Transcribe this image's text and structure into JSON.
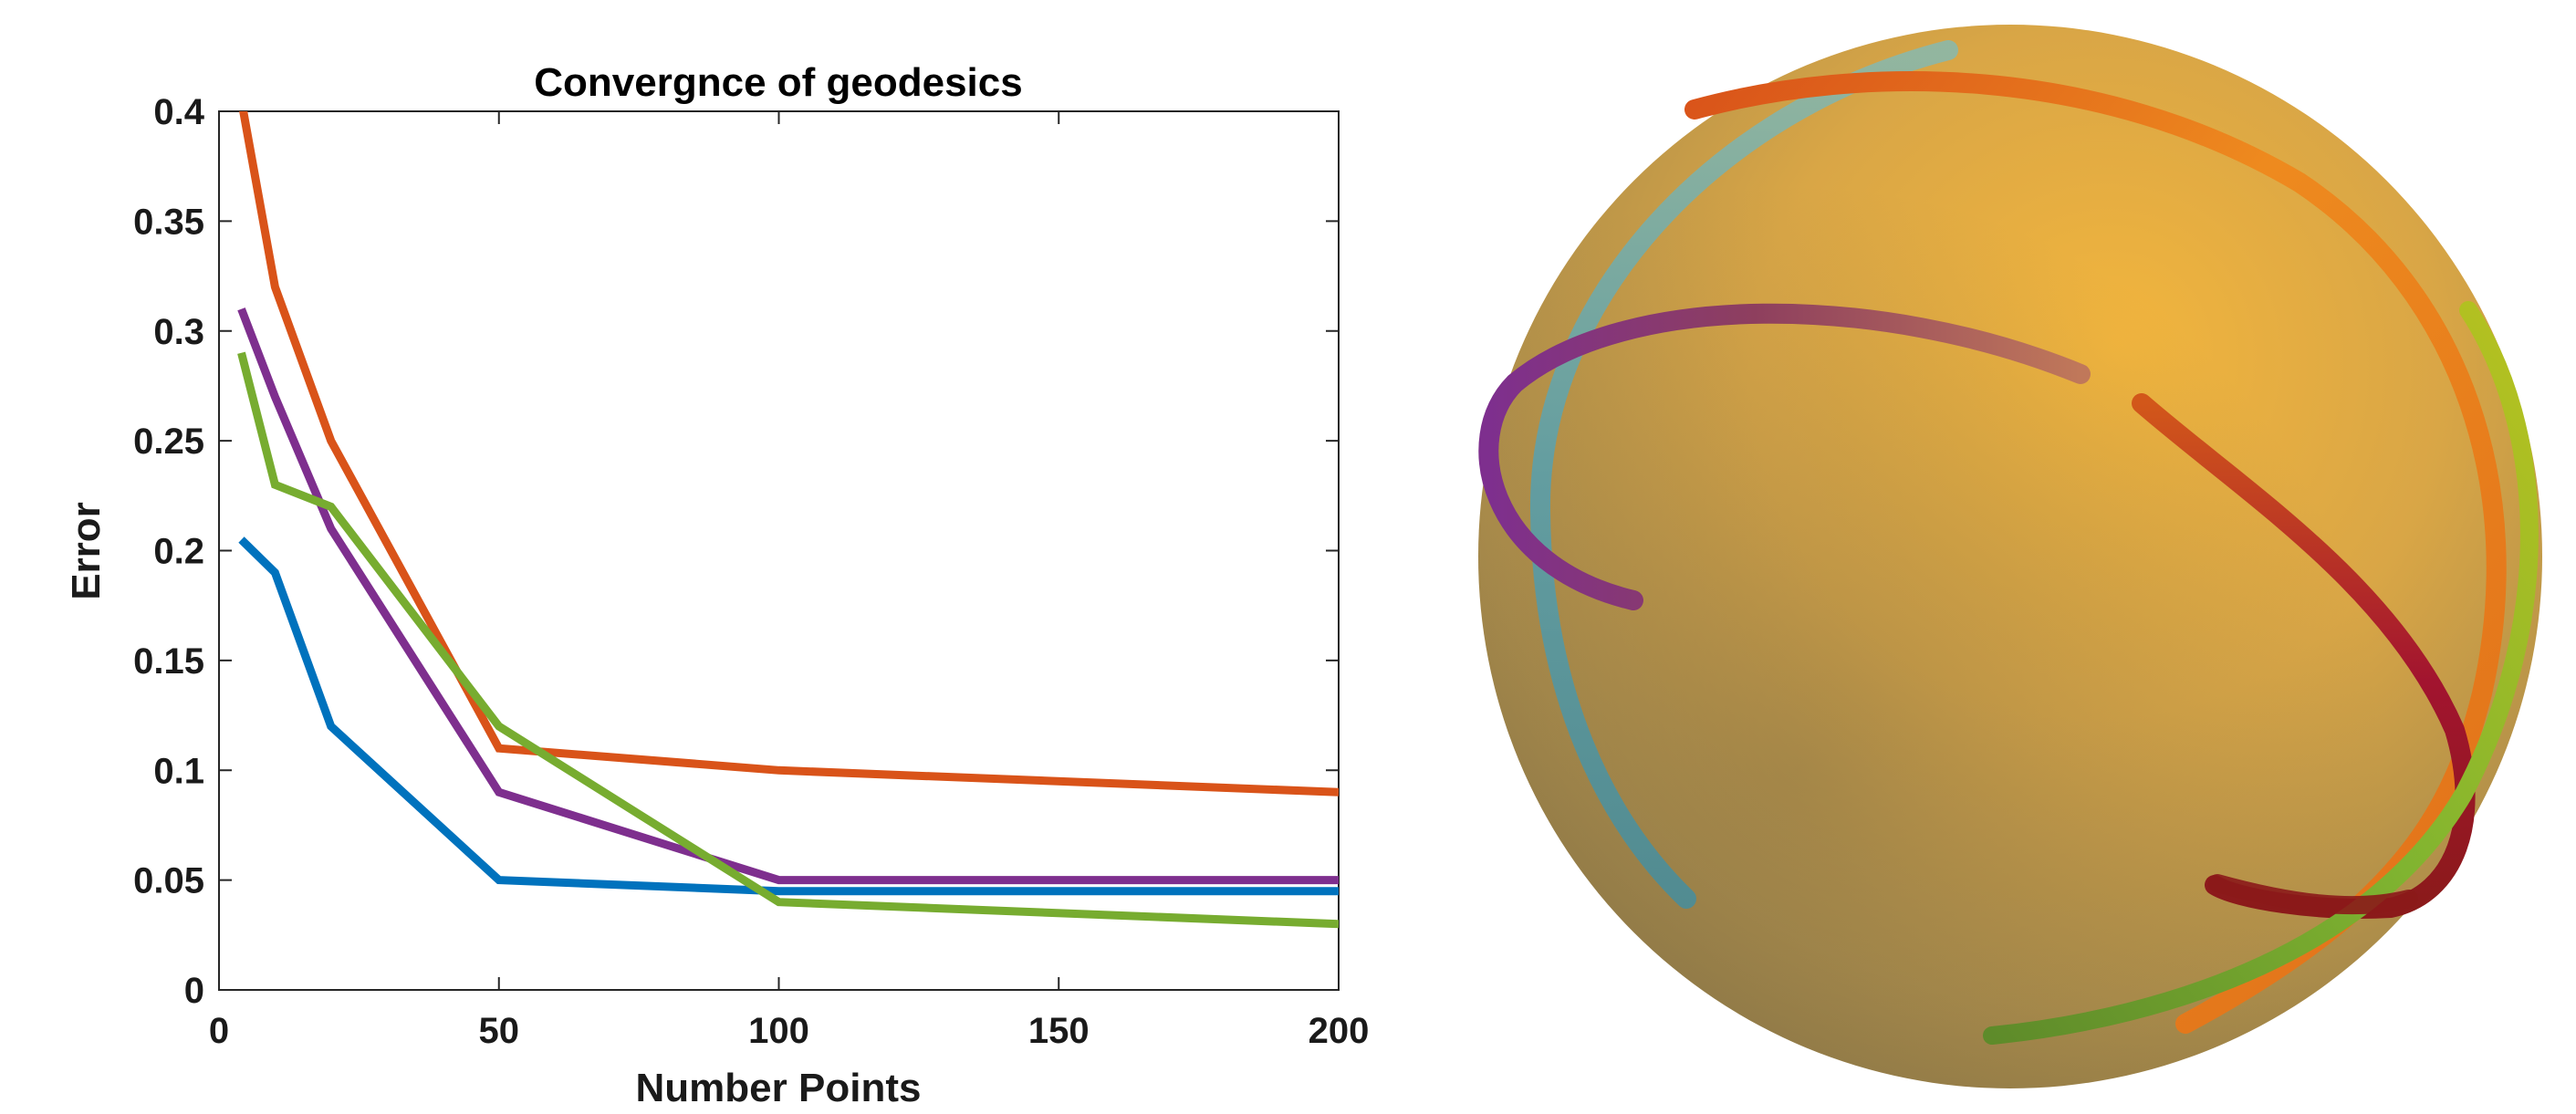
{
  "chart_data": {
    "type": "line",
    "title": "Convergnce of geodesics",
    "xlabel": "Number Points",
    "ylabel": "Error",
    "xlim": [
      0,
      200
    ],
    "ylim": [
      0,
      0.4
    ],
    "xticks": [
      0,
      50,
      100,
      150,
      200
    ],
    "xtick_labels": [
      "0",
      "50",
      "100",
      "150",
      "200"
    ],
    "yticks": [
      0,
      0.05,
      0.1,
      0.15,
      0.2,
      0.25,
      0.3,
      0.35,
      0.4
    ],
    "ytick_labels": [
      "0",
      "0.05",
      "0.1",
      "0.15",
      "0.2",
      "0.25",
      "0.3",
      "0.35",
      "0.4"
    ],
    "grid": false,
    "legend": "none",
    "series": [
      {
        "color": "#0072BD",
        "x": [
          4,
          10,
          20,
          50,
          100,
          200
        ],
        "y": [
          0.205,
          0.19,
          0.12,
          0.05,
          0.045,
          0.045
        ]
      },
      {
        "color": "#D95319",
        "x": [
          4,
          10,
          20,
          50,
          100,
          200
        ],
        "y": [
          0.405,
          0.32,
          0.25,
          0.11,
          0.1,
          0.09
        ]
      },
      {
        "color": "#7E2F8E",
        "x": [
          4,
          10,
          20,
          50,
          100,
          200
        ],
        "y": [
          0.31,
          0.27,
          0.21,
          0.09,
          0.05,
          0.05
        ]
      },
      {
        "color": "#77AC30",
        "x": [
          4,
          10,
          20,
          50,
          100,
          200
        ],
        "y": [
          0.29,
          0.23,
          0.22,
          0.12,
          0.04,
          0.03
        ]
      }
    ]
  },
  "sphere_figure": {
    "sphere_color": "#C9A24A",
    "highlight_color": "#F0B23C",
    "shadow_color": "#8A7440",
    "curve_colors": [
      "#D95319",
      "#EE7F18",
      "#6AA6A8",
      "#7E2F8E",
      "#A2142F",
      "#77AC30",
      "#B5C21F",
      "#8B1A1A"
    ]
  }
}
